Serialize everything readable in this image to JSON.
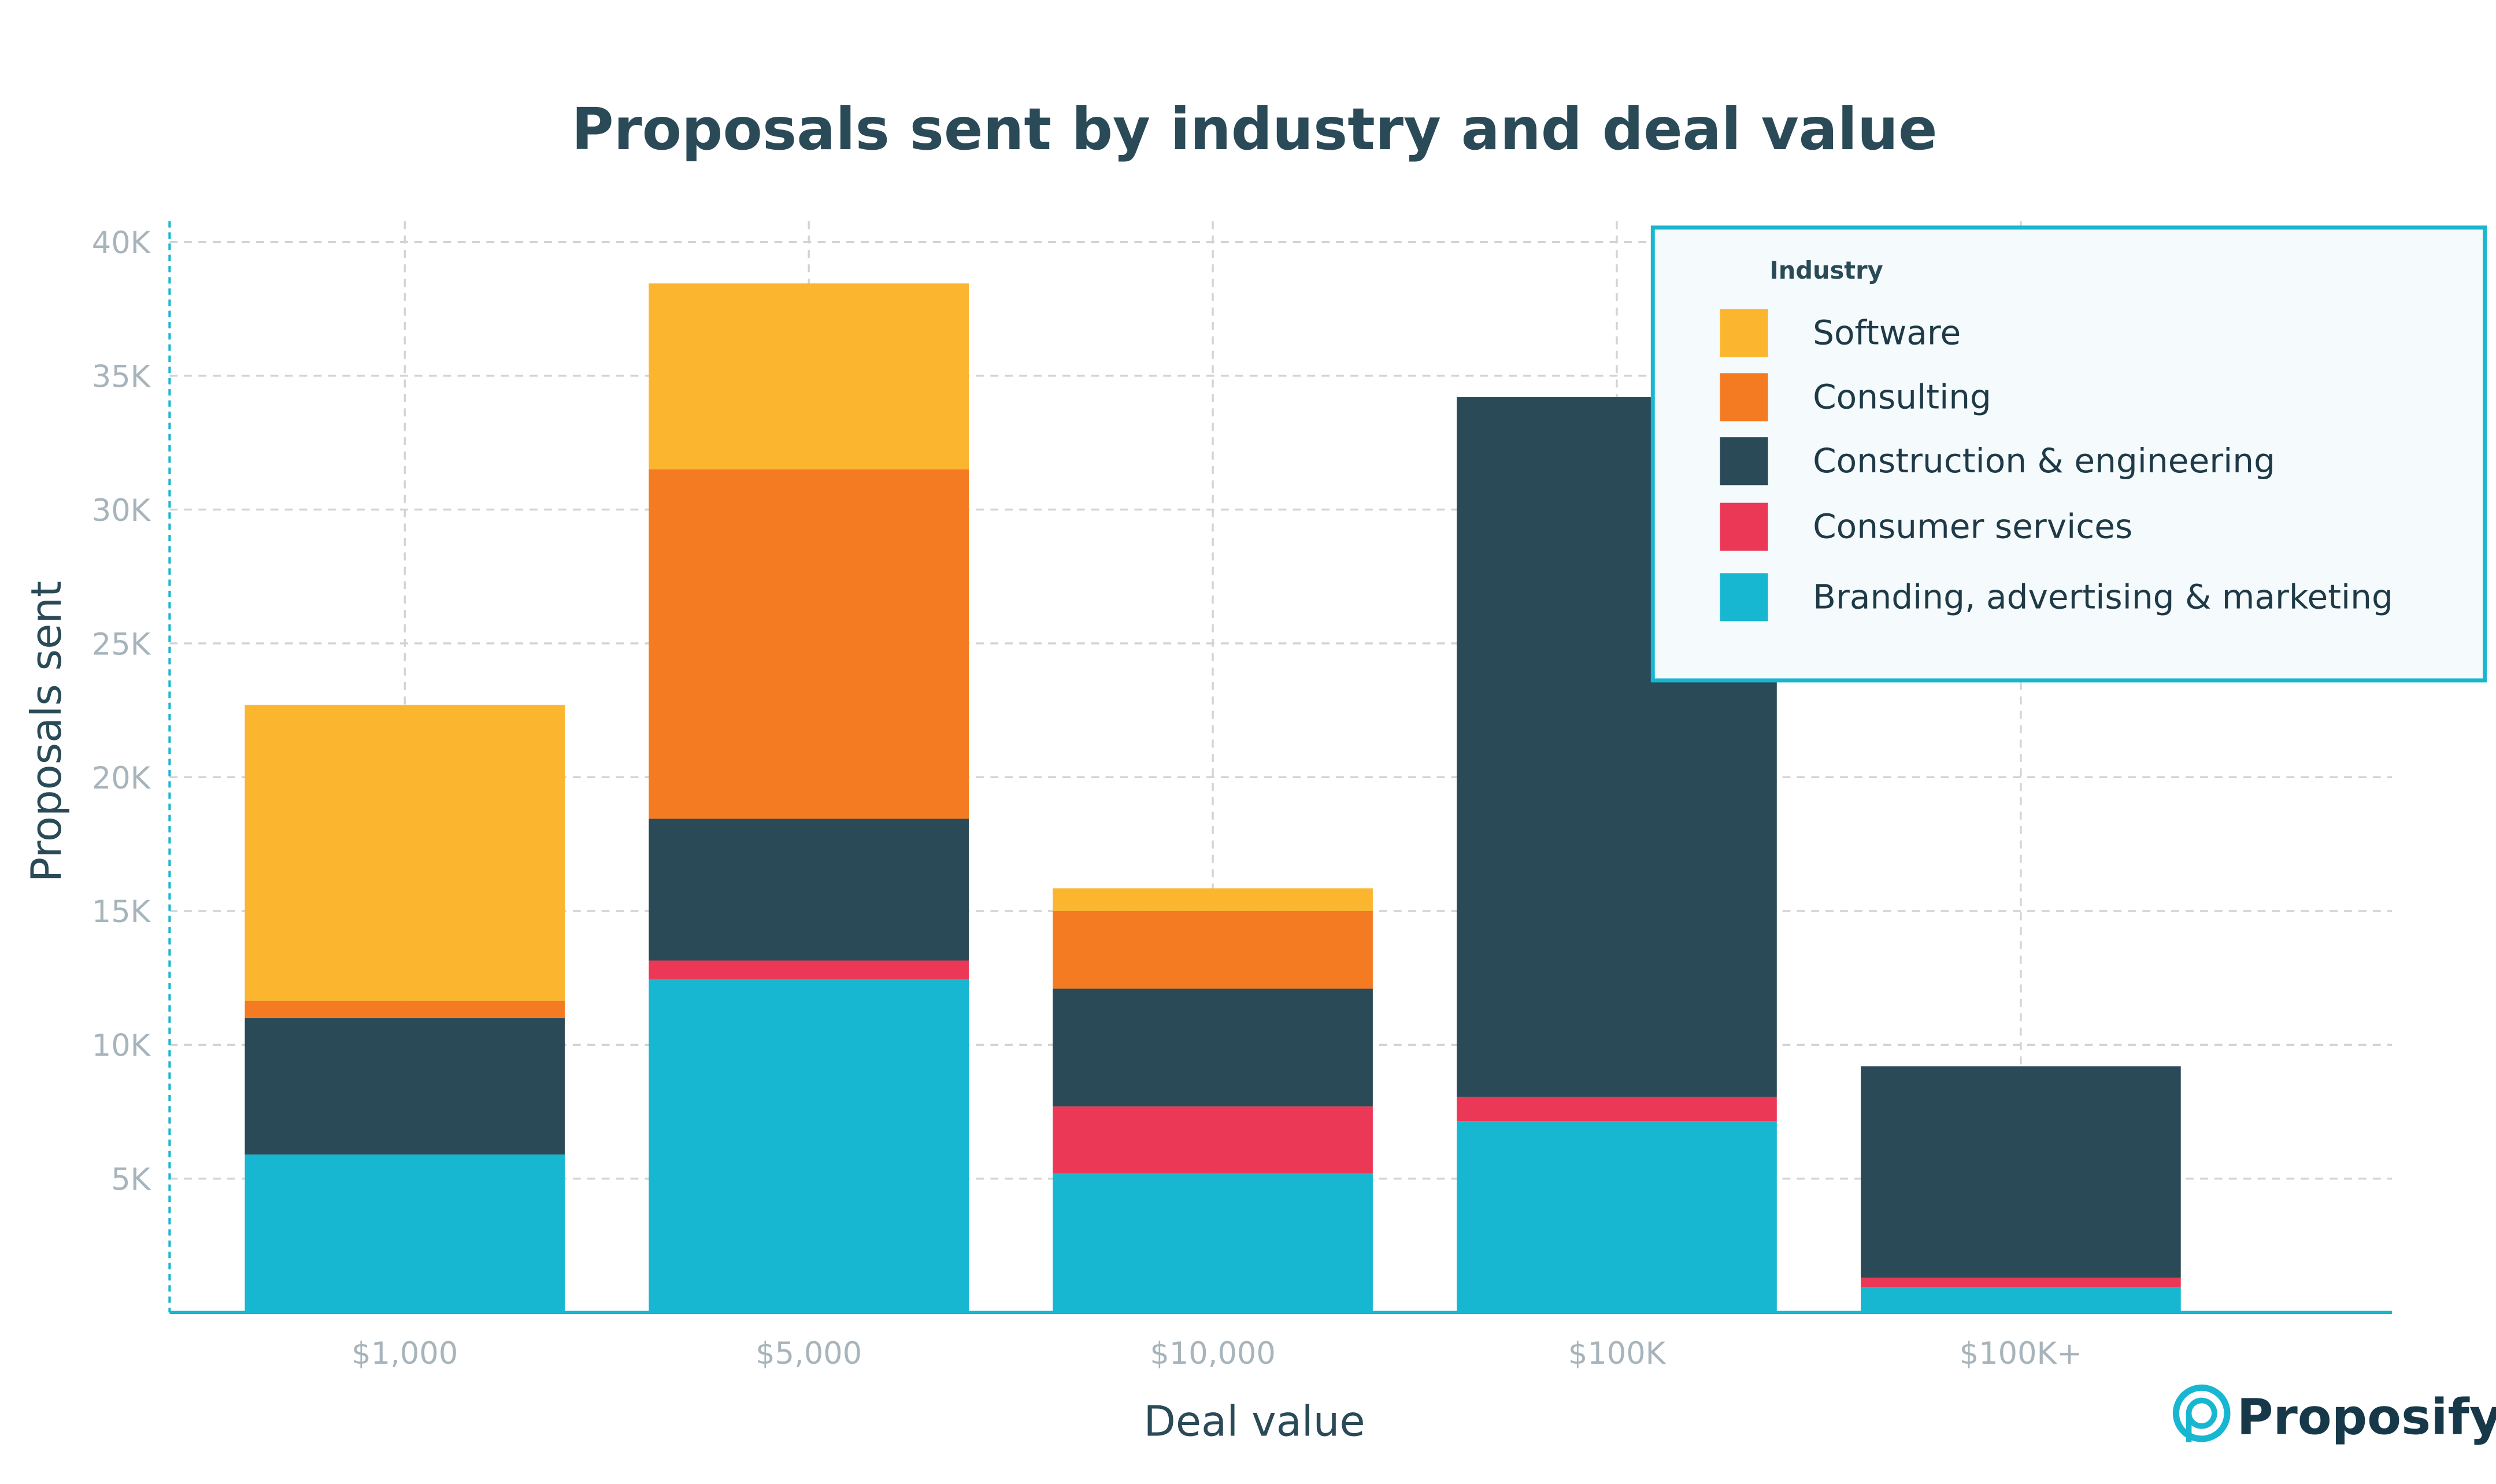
{
  "chart_data": {
    "type": "bar",
    "stacked": true,
    "title": "Proposals sent by industry and deal value",
    "xlabel": "Deal value",
    "ylabel": "Proposals sent",
    "ylim": [
      0,
      40000
    ],
    "yticks": [
      5000,
      10000,
      15000,
      20000,
      25000,
      30000,
      35000,
      40000
    ],
    "ytick_labels": [
      "5K",
      "10K",
      "15K",
      "20K",
      "25K",
      "30K",
      "35K",
      "40K"
    ],
    "grid": true,
    "categories": [
      "$1,000",
      "$5,000",
      "$10,000",
      "$100K",
      "$100K+"
    ],
    "legend": {
      "title": "Industry",
      "placement": "top-right"
    },
    "series": [
      {
        "name": "Branding, advertising & marketing",
        "color": "#17b6d1",
        "values": [
          5900,
          12450,
          5200,
          7150,
          950
        ]
      },
      {
        "name": "Consumer services",
        "color": "#ec3857",
        "values": [
          0,
          700,
          2500,
          900,
          350
        ]
      },
      {
        "name": "Construction & engineering",
        "color": "#2a4a57",
        "values": [
          5100,
          5300,
          4400,
          26150,
          7900
        ]
      },
      {
        "name": "Consulting",
        "color": "#f47b22",
        "values": [
          650,
          13050,
          2900,
          0,
          0
        ]
      },
      {
        "name": "Software",
        "color": "#fbb52f",
        "values": [
          11050,
          6950,
          850,
          0,
          0
        ]
      }
    ],
    "legend_order": [
      "Software",
      "Consulting",
      "Construction & engineering",
      "Consumer services",
      "Branding, advertising & marketing"
    ]
  },
  "branding": {
    "logo_text": "Proposify",
    "accent": "#17b6d1"
  }
}
